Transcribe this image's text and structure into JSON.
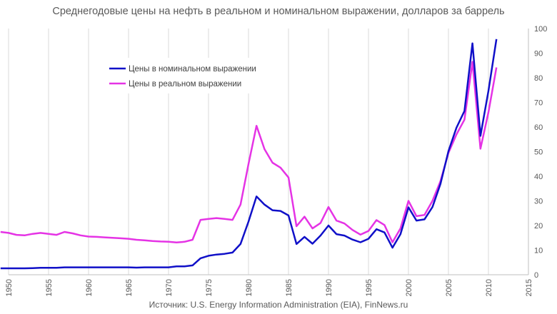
{
  "chart_data": {
    "type": "line",
    "title": "Среднегодовые цены на нефть в реальном и номинальном выражении, долларов за баррель",
    "source": "Источник: U.S. Energy Information Administration (EIA), FinNews.ru",
    "xlim": [
      1950,
      2015
    ],
    "ylim": [
      0,
      100
    ],
    "x_ticks": [
      1950,
      1955,
      1960,
      1965,
      1970,
      1975,
      1980,
      1985,
      1990,
      1995,
      2000,
      2005,
      2010,
      2015
    ],
    "y_ticks": [
      0,
      10,
      20,
      30,
      40,
      50,
      60,
      70,
      80,
      90,
      100
    ],
    "grid": "vertical",
    "legend_position": "top-left",
    "series": [
      {
        "name": "Цены в номинальном выражении",
        "color": "#1010c8",
        "x": [
          1949,
          1950,
          1951,
          1952,
          1953,
          1954,
          1955,
          1956,
          1957,
          1958,
          1959,
          1960,
          1961,
          1962,
          1963,
          1964,
          1965,
          1966,
          1967,
          1968,
          1969,
          1970,
          1971,
          1972,
          1973,
          1974,
          1975,
          1976,
          1977,
          1978,
          1979,
          1980,
          1981,
          1982,
          1983,
          1984,
          1985,
          1986,
          1987,
          1988,
          1989,
          1990,
          1991,
          1992,
          1993,
          1994,
          1995,
          1996,
          1997,
          1998,
          1999,
          2000,
          2001,
          2002,
          2003,
          2004,
          2005,
          2006,
          2007,
          2008,
          2009,
          2010,
          2011
        ],
        "y": [
          2.6,
          2.6,
          2.6,
          2.6,
          2.7,
          2.8,
          2.8,
          2.8,
          3.0,
          3.0,
          3.0,
          3.0,
          3.0,
          3.0,
          3.0,
          3.0,
          3.0,
          2.9,
          3.0,
          3.0,
          3.0,
          3.0,
          3.4,
          3.4,
          3.8,
          6.7,
          7.7,
          8.2,
          8.5,
          9.0,
          12.5,
          21.6,
          31.8,
          28.5,
          26.2,
          25.9,
          24.1,
          12.5,
          15.4,
          12.6,
          15.9,
          20.0,
          16.5,
          15.9,
          14.3,
          13.2,
          14.6,
          18.5,
          17.2,
          11.0,
          16.5,
          27.4,
          22.0,
          22.5,
          27.5,
          36.9,
          50.2,
          59.7,
          66.5,
          94.0,
          56.4,
          74.7,
          95.7
        ]
      },
      {
        "name": "Цены в реальном выражении",
        "color": "#e533e5",
        "x": [
          1949,
          1950,
          1951,
          1952,
          1953,
          1954,
          1955,
          1956,
          1957,
          1958,
          1959,
          1960,
          1961,
          1962,
          1963,
          1964,
          1965,
          1966,
          1967,
          1968,
          1969,
          1970,
          1971,
          1972,
          1973,
          1974,
          1975,
          1976,
          1977,
          1978,
          1979,
          1980,
          1981,
          1982,
          1983,
          1984,
          1985,
          1986,
          1987,
          1988,
          1989,
          1990,
          1991,
          1992,
          1993,
          1994,
          1995,
          1996,
          1997,
          1998,
          1999,
          2000,
          2001,
          2002,
          2003,
          2004,
          2005,
          2006,
          2007,
          2008,
          2009,
          2010,
          2011
        ],
        "y": [
          17.4,
          17.0,
          16.2,
          16.0,
          16.6,
          17.0,
          16.6,
          16.2,
          17.4,
          16.8,
          16.0,
          15.5,
          15.4,
          15.2,
          15.0,
          14.8,
          14.6,
          14.2,
          14.0,
          13.7,
          13.5,
          13.4,
          13.1,
          13.4,
          14.2,
          22.3,
          22.7,
          23.0,
          22.7,
          22.3,
          28.5,
          45.0,
          60.5,
          51.0,
          45.5,
          43.5,
          39.5,
          19.7,
          23.6,
          18.8,
          21.0,
          27.5,
          22.0,
          20.8,
          18.2,
          16.3,
          17.8,
          22.2,
          20.2,
          13.2,
          18.8,
          30.0,
          23.8,
          24.3,
          30.0,
          38.0,
          49.5,
          57.0,
          63.0,
          86.5,
          51.2,
          66.0,
          84.2
        ]
      }
    ]
  }
}
